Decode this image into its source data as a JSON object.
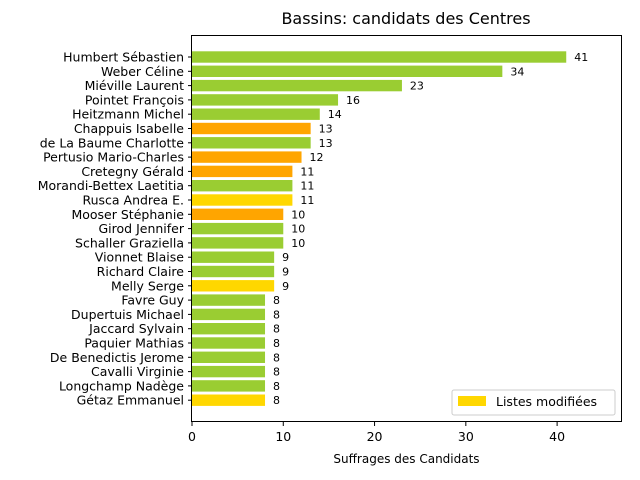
{
  "chart_data": {
    "type": "bar",
    "orientation": "horizontal",
    "title": "Bassins: candidats des Centres",
    "xlabel": "Suffrages des Candidats",
    "ylabel": "",
    "xlim": [
      0,
      47
    ],
    "xticks": [
      0,
      10,
      20,
      30,
      40
    ],
    "grid": false,
    "legend_position": "bottom-right",
    "legend": [
      {
        "label": "Listes modifiées",
        "color": "#ffd700"
      }
    ],
    "bars": [
      {
        "name": "Humbert Sébastien",
        "value": 41,
        "color": "#9acd32"
      },
      {
        "name": "Weber Céline",
        "value": 34,
        "color": "#9acd32"
      },
      {
        "name": "Miéville Laurent",
        "value": 23,
        "color": "#9acd32"
      },
      {
        "name": "Pointet François",
        "value": 16,
        "color": "#9acd32"
      },
      {
        "name": "Heitzmann Michel",
        "value": 14,
        "color": "#9acd32"
      },
      {
        "name": "Chappuis Isabelle",
        "value": 13,
        "color": "#ffa500"
      },
      {
        "name": "de La Baume Charlotte",
        "value": 13,
        "color": "#9acd32"
      },
      {
        "name": "Pertusio Mario-Charles",
        "value": 12,
        "color": "#ffa500"
      },
      {
        "name": "Cretegny Gérald",
        "value": 11,
        "color": "#ffa500"
      },
      {
        "name": "Morandi-Bettex Laetitia",
        "value": 11,
        "color": "#9acd32"
      },
      {
        "name": "Rusca Andrea E.",
        "value": 11,
        "color": "#ffd700"
      },
      {
        "name": "Mooser Stéphanie",
        "value": 10,
        "color": "#ffa500"
      },
      {
        "name": "Girod Jennifer",
        "value": 10,
        "color": "#9acd32"
      },
      {
        "name": "Schaller Graziella",
        "value": 10,
        "color": "#9acd32"
      },
      {
        "name": "Vionnet Blaise",
        "value": 9,
        "color": "#9acd32"
      },
      {
        "name": "Richard Claire",
        "value": 9,
        "color": "#9acd32"
      },
      {
        "name": "Melly Serge",
        "value": 9,
        "color": "#ffd700"
      },
      {
        "name": "Favre Guy",
        "value": 8,
        "color": "#9acd32"
      },
      {
        "name": "Dupertuis Michael",
        "value": 8,
        "color": "#9acd32"
      },
      {
        "name": "Jaccard Sylvain",
        "value": 8,
        "color": "#9acd32"
      },
      {
        "name": "Paquier Mathias",
        "value": 8,
        "color": "#9acd32"
      },
      {
        "name": "De Benedictis Jerome",
        "value": 8,
        "color": "#9acd32"
      },
      {
        "name": "Cavalli Virginie",
        "value": 8,
        "color": "#9acd32"
      },
      {
        "name": "Longchamp Nadège",
        "value": 8,
        "color": "#9acd32"
      },
      {
        "name": "Gétaz Emmanuel",
        "value": 8,
        "color": "#ffd700"
      }
    ]
  }
}
